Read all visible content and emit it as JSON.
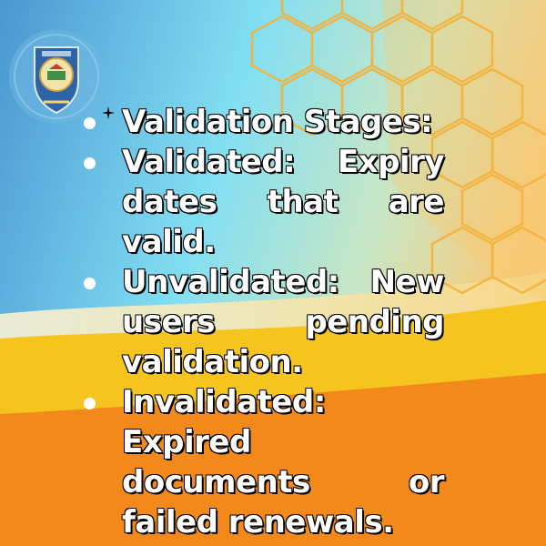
{
  "colors": {
    "background_left": "#4f9fd6",
    "background_mid": "#7fdaf0",
    "background_right": "#f6c878",
    "hex_outline": "#f4b23b",
    "yellow_band": "#f5c31d",
    "orange_base": "#f28a1a",
    "text_fill": "#ffffff",
    "text_outline": "#000000"
  },
  "logo": {
    "icon": "institution-crest-icon"
  },
  "list": {
    "items": [
      {
        "text": "Validation Stages:"
      },
      {
        "text": "Validated: Expiry dates that are valid."
      },
      {
        "text": "Unvalidated: New users pending validation."
      },
      {
        "text": "Invalidated: Expired documents or failed renewals."
      }
    ]
  }
}
